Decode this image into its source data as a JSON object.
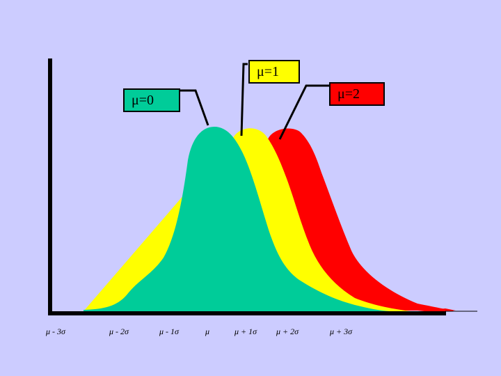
{
  "labels": {
    "mu0": "μ=0",
    "mu1": "μ=1",
    "mu2": "μ=2"
  },
  "x_ticks": [
    "μ - 3σ",
    "μ - 2σ",
    "μ - 1σ",
    "μ",
    "μ + 1σ",
    "μ + 2σ",
    "μ + 3σ"
  ],
  "curves": [
    {
      "name": "mu0-curve",
      "color": "#00cc99"
    },
    {
      "name": "mu1-curve",
      "color": "#ffff00"
    },
    {
      "name": "mu2-curve",
      "color": "#ff0000"
    }
  ],
  "colors": {
    "background": "#ccccff",
    "axis": "#000000"
  }
}
